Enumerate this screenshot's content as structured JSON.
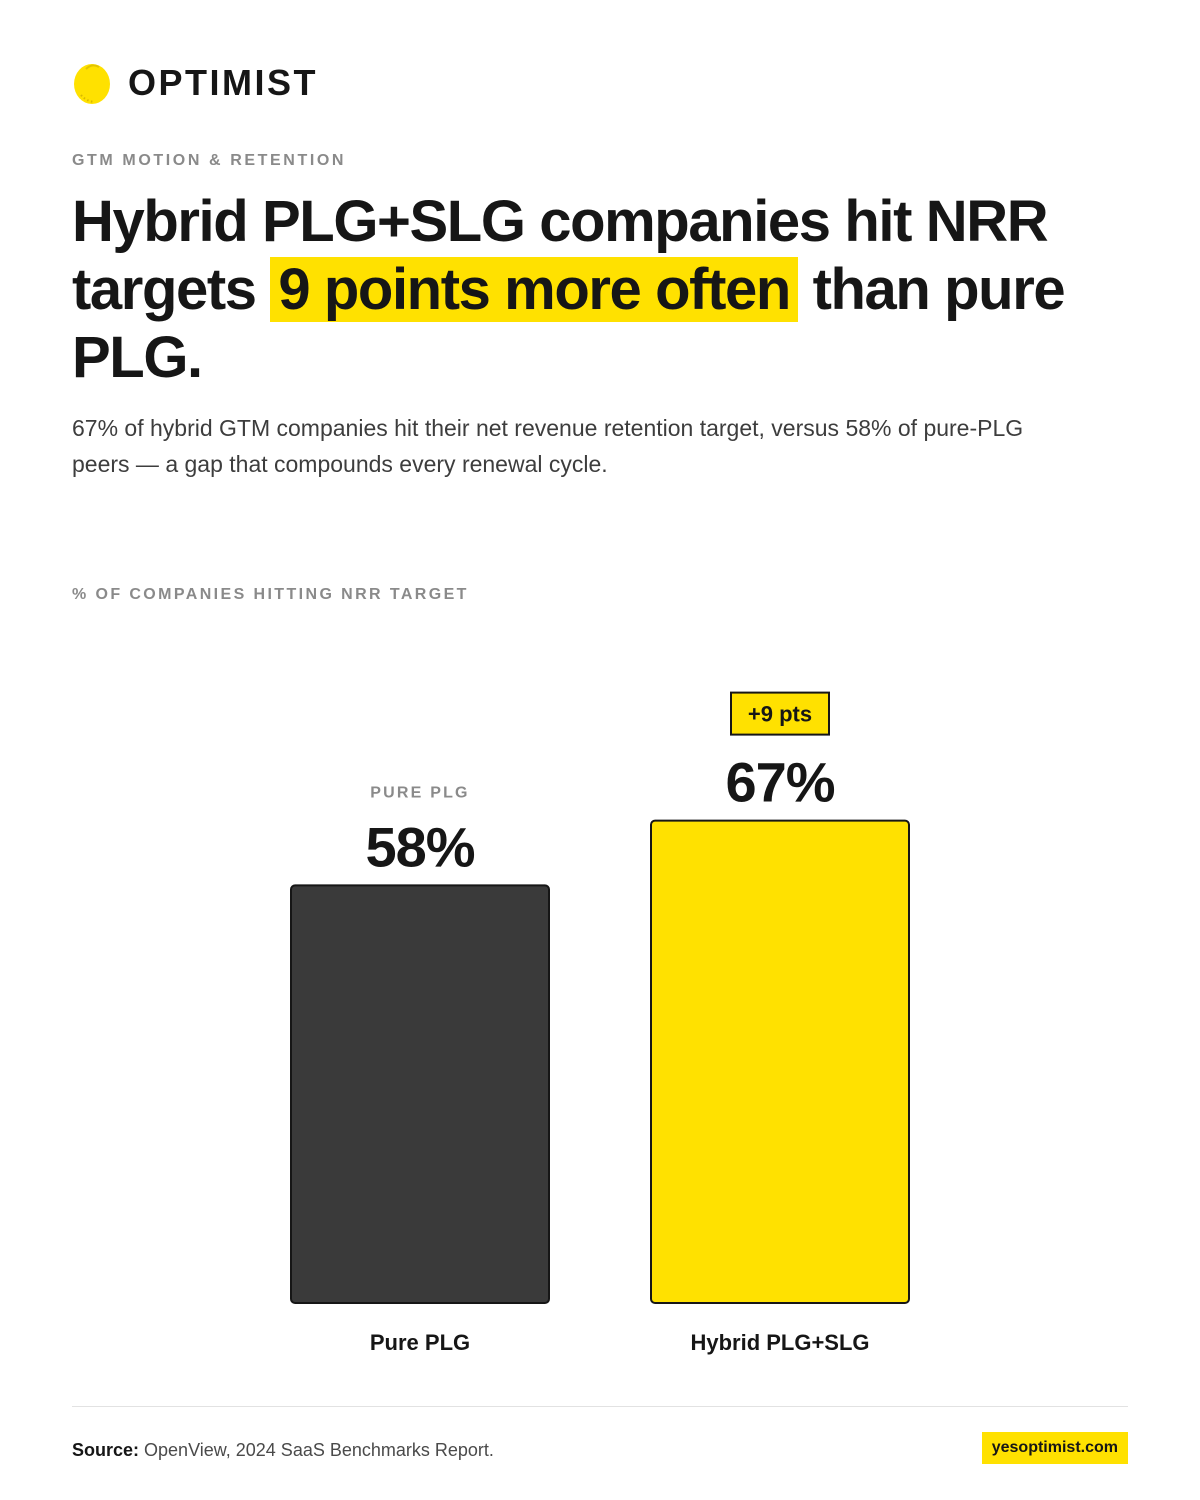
{
  "brand": {
    "name": "OPTIMIST",
    "logo_icon": "lemon-icon",
    "accent": "#ffe100"
  },
  "eyebrow": "GTM MOTION & RETENTION",
  "headline": {
    "before": "Hybrid PLG+SLG companies hit NRR targets ",
    "highlight": "9 points more often",
    "after": " than pure PLG."
  },
  "subtitle": "67% of hybrid GTM companies hit their net revenue retention target, versus 58% of pure-PLG peers — a gap that compounds every renewal cycle.",
  "chart_data": {
    "type": "bar",
    "ylabel": "% OF COMPANIES HITTING NRR TARGET",
    "categories": [
      "Pure PLG",
      "Hybrid PLG+SLG"
    ],
    "values": [
      58,
      67
    ],
    "value_labels": [
      "58%",
      "67%"
    ],
    "overlines": [
      "PURE PLG",
      ""
    ],
    "badges": [
      "",
      "+9 pts"
    ],
    "colors": [
      "#3a3a3a",
      "#ffe100"
    ],
    "grid": false,
    "legend": "none"
  },
  "footer": {
    "source_label": "Source:",
    "source_text": " OpenView, 2024 SaaS Benchmarks Report.",
    "site": "yesoptimist.com"
  }
}
